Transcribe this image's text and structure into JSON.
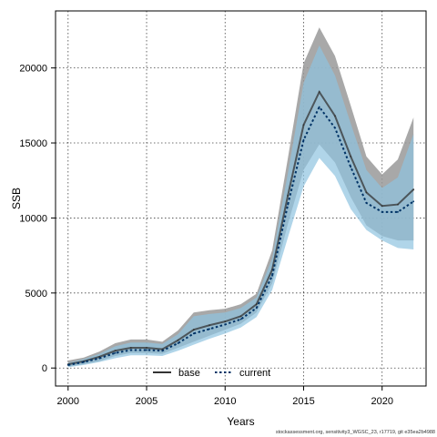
{
  "chart_data": {
    "type": "line",
    "title": "",
    "xlabel": "Years",
    "ylabel": "SSB",
    "xlim": [
      1999.2,
      2022.8
    ],
    "ylim": [
      -1200,
      23800
    ],
    "x_ticks": [
      2000,
      2005,
      2010,
      2015,
      2020
    ],
    "y_ticks": [
      0,
      5000,
      10000,
      15000,
      20000
    ],
    "grid": true,
    "legend_position": "bottom-center",
    "caption": "stockassessment.org, sensitivity3_WGSC_23, r17719, git e35ea2b4988",
    "x": [
      2000,
      2001,
      2002,
      2003,
      2004,
      2005,
      2006,
      2007,
      2008,
      2009,
      2010,
      2011,
      2012,
      2013,
      2014,
      2015,
      2016,
      2017,
      2018,
      2019,
      2020,
      2021,
      2022
    ],
    "series": [
      {
        "name": "base",
        "color": "#333333",
        "band_color": "#999999",
        "values": [
          250,
          450,
          750,
          1150,
          1350,
          1350,
          1250,
          1850,
          2550,
          2850,
          3100,
          3450,
          4250,
          6550,
          11500,
          16200,
          18400,
          16800,
          14100,
          11700,
          10800,
          10900,
          11900
        ],
        "lower": [
          100,
          250,
          450,
          800,
          1000,
          1000,
          950,
          1350,
          1750,
          2150,
          2550,
          2950,
          3700,
          5650,
          9600,
          13200,
          14900,
          13700,
          11400,
          9500,
          8800,
          8500,
          8500
        ],
        "upper": [
          500,
          700,
          1100,
          1650,
          1900,
          1900,
          1750,
          2500,
          3700,
          3850,
          3950,
          4250,
          4950,
          7850,
          14000,
          20300,
          22700,
          20800,
          17500,
          14100,
          12900,
          13900,
          16700
        ]
      },
      {
        "name": "current",
        "color": "#003366",
        "band_color": "#8fc3e0",
        "values": [
          200,
          400,
          650,
          1000,
          1200,
          1200,
          1150,
          1650,
          2300,
          2600,
          2900,
          3250,
          4000,
          6150,
          10900,
          15200,
          17400,
          16000,
          13400,
          11000,
          10400,
          10400,
          11100
        ],
        "lower": [
          50,
          200,
          400,
          650,
          850,
          850,
          800,
          1150,
          1550,
          1950,
          2300,
          2700,
          3400,
          5200,
          8700,
          12100,
          14000,
          12800,
          10600,
          9200,
          8500,
          8000,
          7900
        ],
        "upper": [
          350,
          600,
          950,
          1450,
          1700,
          1700,
          1600,
          2250,
          3450,
          3600,
          3700,
          4000,
          4700,
          7300,
          13000,
          19000,
          21500,
          19500,
          16300,
          13200,
          12000,
          12700,
          15600
        ]
      }
    ]
  }
}
